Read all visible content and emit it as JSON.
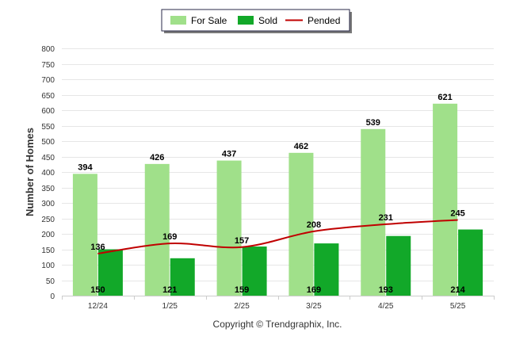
{
  "chart_data": {
    "type": "bar",
    "categories": [
      "12/24",
      "1/25",
      "2/25",
      "3/25",
      "4/25",
      "5/25"
    ],
    "series": [
      {
        "name": "For Sale",
        "kind": "bar",
        "color": "#a0e08a",
        "values": [
          394,
          426,
          437,
          462,
          539,
          621
        ]
      },
      {
        "name": "Sold",
        "kind": "bar",
        "color": "#12a829",
        "values": [
          150,
          121,
          159,
          169,
          193,
          214
        ]
      },
      {
        "name": "Pended",
        "kind": "line",
        "color": "#c00000",
        "values": [
          136,
          169,
          157,
          208,
          231,
          245
        ]
      }
    ],
    "ylabel": "Number of Homes",
    "xlabel": "",
    "ylim": [
      0,
      800
    ],
    "yticks": [
      0,
      50,
      100,
      150,
      200,
      250,
      300,
      350,
      400,
      450,
      500,
      550,
      600,
      650,
      700,
      750,
      800
    ],
    "grid": true,
    "legend_position": "top-center"
  },
  "footer": {
    "credit": "Copyright © Trendgraphix, Inc."
  }
}
